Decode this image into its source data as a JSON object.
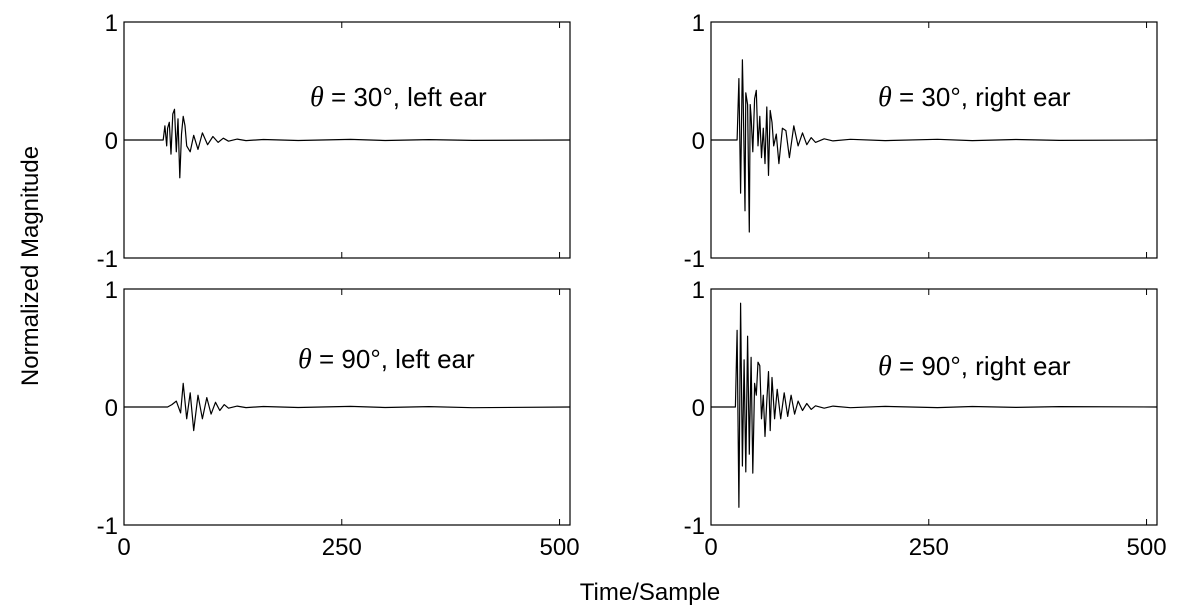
{
  "chart_data": {
    "type": "line",
    "xlabel": "Time/Sample",
    "ylabel": "Normalized Magnitude",
    "panels": [
      {
        "id": "p30L",
        "annotation": {
          "theta": "θ",
          "rest": " = 30°, left ear"
        },
        "xlim": [
          0,
          512
        ],
        "ylim": [
          -1,
          1
        ],
        "xticks": [
          0,
          250,
          500
        ],
        "yticks": [
          1,
          0,
          -1
        ],
        "show_xticklabels": false,
        "series": [
          {
            "x": [
              0,
              45,
              47,
              49,
              50,
              52,
              54,
              56,
              58,
              60,
              62,
              64,
              66,
              68,
              70,
              72,
              76,
              80,
              85,
              90,
              96,
              102,
              108,
              114,
              120,
              130,
              140,
              160,
              200,
              260,
              300,
              350,
              400,
              512
            ],
            "y": [
              0,
              0,
              0.12,
              -0.05,
              0.1,
              0.15,
              -0.12,
              0.22,
              0.26,
              -0.1,
              0.18,
              -0.32,
              0.05,
              0.2,
              0.12,
              -0.05,
              -0.1,
              0.04,
              -0.08,
              0.06,
              -0.04,
              0.03,
              -0.02,
              0.015,
              -0.01,
              0.008,
              -0.005,
              0.004,
              -0.004,
              0.005,
              -0.004,
              0.003,
              -0.003,
              0
            ]
          }
        ]
      },
      {
        "id": "p30R",
        "annotation": {
          "theta": "θ",
          "rest": " = 30°, right ear"
        },
        "xlim": [
          0,
          512
        ],
        "ylim": [
          -1,
          1
        ],
        "xticks": [
          0,
          250,
          500
        ],
        "yticks": [
          1,
          0,
          -1
        ],
        "show_xticklabels": false,
        "series": [
          {
            "x": [
              0,
              30,
              32,
              34,
              36,
              37,
              39,
              40,
              42,
              44,
              45,
              46,
              48,
              50,
              52,
              54,
              56,
              58,
              60,
              62,
              64,
              66,
              68,
              70,
              72,
              75,
              78,
              82,
              86,
              90,
              95,
              100,
              105,
              110,
              115,
              120,
              130,
              140,
              160,
              200,
              260,
              300,
              350,
              400,
              512
            ],
            "y": [
              0,
              0,
              0.52,
              -0.45,
              0.68,
              0.35,
              -0.6,
              0.4,
              0.3,
              -0.78,
              0.3,
              0.2,
              -0.1,
              0.35,
              0.42,
              -0.05,
              0.2,
              -0.15,
              0.1,
              -0.2,
              0.28,
              -0.3,
              0.25,
              0.15,
              -0.05,
              0.05,
              -0.2,
              0.1,
              0.08,
              -0.15,
              0.12,
              -0.05,
              0.06,
              -0.04,
              0.02,
              -0.02,
              0.01,
              -0.008,
              0.006,
              -0.005,
              0.006,
              -0.005,
              0.004,
              -0.003,
              0
            ]
          }
        ]
      },
      {
        "id": "p90L",
        "annotation": {
          "theta": "θ",
          "rest": " = 90°, left ear"
        },
        "xlim": [
          0,
          512
        ],
        "ylim": [
          -1,
          1
        ],
        "xticks": [
          0,
          250,
          500
        ],
        "yticks": [
          1,
          0,
          -1
        ],
        "show_xticklabels": true,
        "series": [
          {
            "x": [
              0,
              50,
              55,
              60,
              65,
              68,
              72,
              76,
              80,
              85,
              90,
              95,
              100,
              105,
              110,
              115,
              120,
              130,
              140,
              160,
              200,
              260,
              300,
              350,
              400,
              512
            ],
            "y": [
              0,
              0,
              0.02,
              0.05,
              -0.05,
              0.2,
              -0.1,
              0.12,
              -0.2,
              0.1,
              -0.1,
              0.08,
              -0.06,
              0.04,
              -0.03,
              0.02,
              -0.01,
              0.008,
              -0.005,
              0.004,
              -0.004,
              0.005,
              -0.004,
              0.003,
              -0.006,
              0
            ]
          }
        ]
      },
      {
        "id": "p90R",
        "annotation": {
          "theta": "θ",
          "rest": " = 90°, right ear"
        },
        "xlim": [
          0,
          512
        ],
        "ylim": [
          -1,
          1
        ],
        "xticks": [
          0,
          250,
          500
        ],
        "yticks": [
          1,
          0,
          -1
        ],
        "show_xticklabels": true,
        "series": [
          {
            "x": [
              0,
              28,
              30,
              32,
              34,
              36,
              38,
              40,
              42,
              44,
              46,
              48,
              50,
              52,
              54,
              56,
              58,
              60,
              62,
              64,
              66,
              68,
              70,
              73,
              76,
              80,
              84,
              88,
              92,
              96,
              100,
              105,
              110,
              115,
              120,
              130,
              140,
              160,
              200,
              260,
              300,
              350,
              400,
              512
            ],
            "y": [
              0,
              0,
              0.65,
              -0.85,
              0.88,
              -0.5,
              0.4,
              -0.55,
              0.6,
              -0.4,
              0.42,
              -0.56,
              0.2,
              0.1,
              0.38,
              0.35,
              -0.1,
              0.1,
              -0.25,
              0.05,
              0.3,
              -0.2,
              0.25,
              -0.1,
              0.15,
              -0.1,
              0.12,
              -0.08,
              0.1,
              -0.06,
              0.05,
              -0.03,
              0.03,
              -0.02,
              0.01,
              -0.01,
              0.008,
              -0.006,
              0.005,
              -0.005,
              0.004,
              -0.003,
              0.003,
              0
            ]
          }
        ]
      }
    ]
  }
}
